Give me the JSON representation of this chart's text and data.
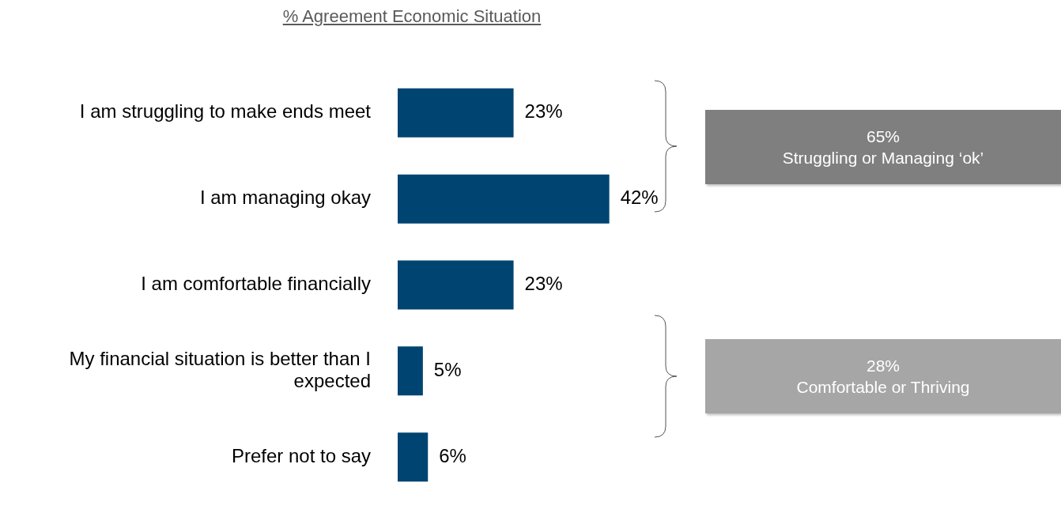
{
  "chart_data": {
    "type": "bar",
    "orientation": "horizontal",
    "title": "% Agreement Economic Situation",
    "categories": [
      "I am struggling to make ends meet",
      "I am managing okay",
      "I am comfortable financially",
      "My financial situation is better than I expected",
      "Prefer not to say"
    ],
    "values": [
      23,
      42,
      23,
      5,
      6
    ],
    "color": "#004472",
    "value_labels": [
      "23%",
      "42%",
      "23%",
      "5%",
      "6%"
    ],
    "annotations": [
      "65%\nStruggling or Managing ‘ok’",
      "28%\nComfortable or Thriving"
    ],
    "grid": false,
    "legend": false
  }
}
